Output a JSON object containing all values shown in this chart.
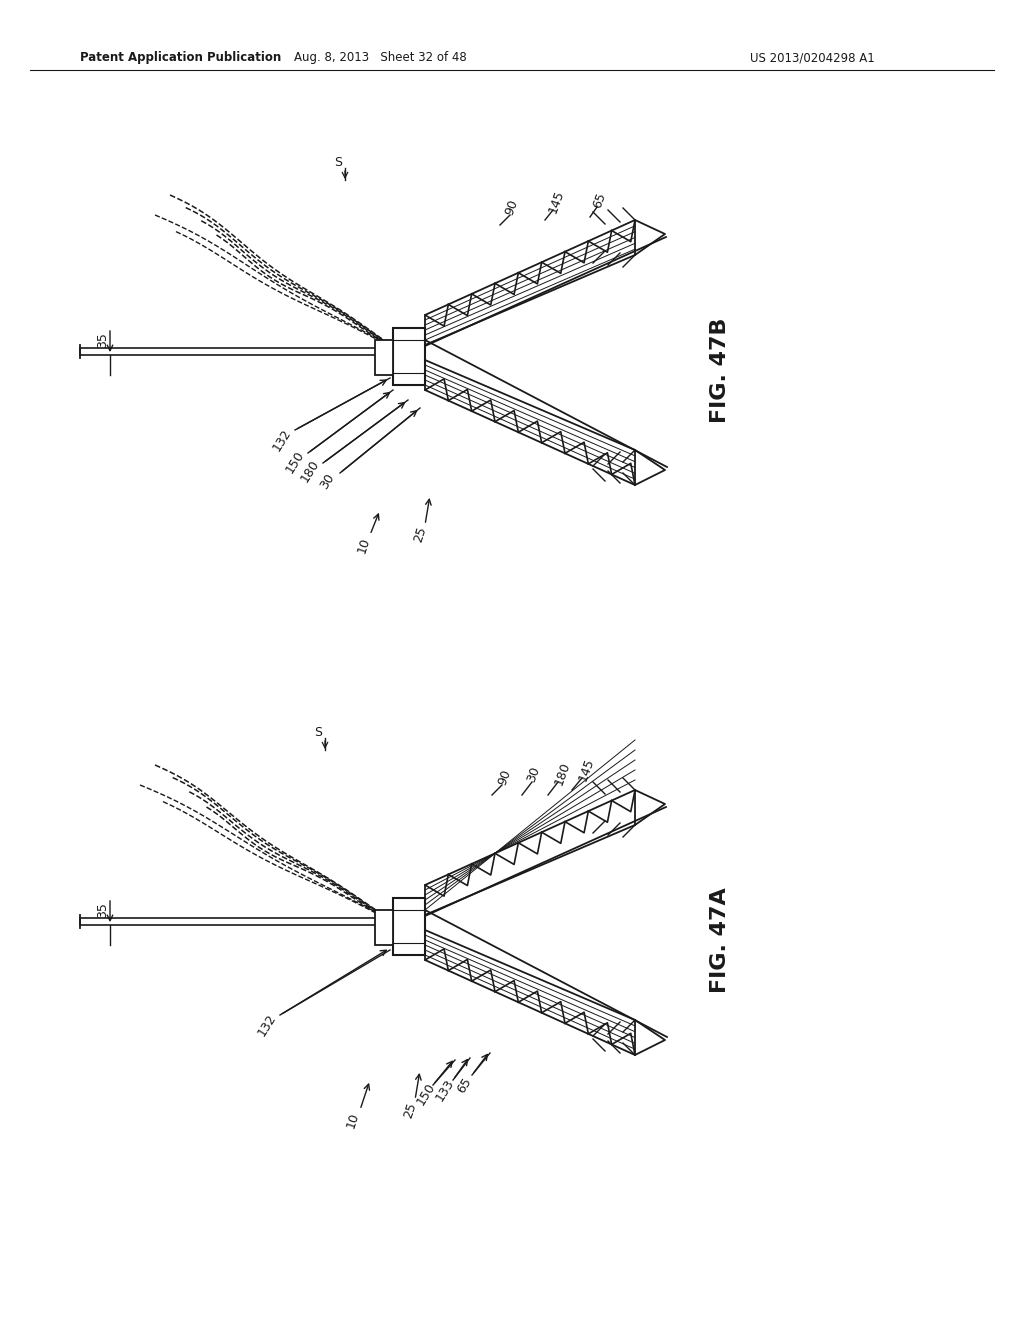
{
  "background_color": "#ffffff",
  "header_left": "Patent Application Publication",
  "header_mid": "Aug. 8, 2013   Sheet 32 of 48",
  "header_right": "US 2013/0204298 A1",
  "fig_47B_label": "FIG. 47B",
  "fig_47A_label": "FIG. 47A",
  "line_color": "#1a1a1a",
  "line_width": 1.5,
  "fig_width": 10.24,
  "fig_height": 13.2
}
